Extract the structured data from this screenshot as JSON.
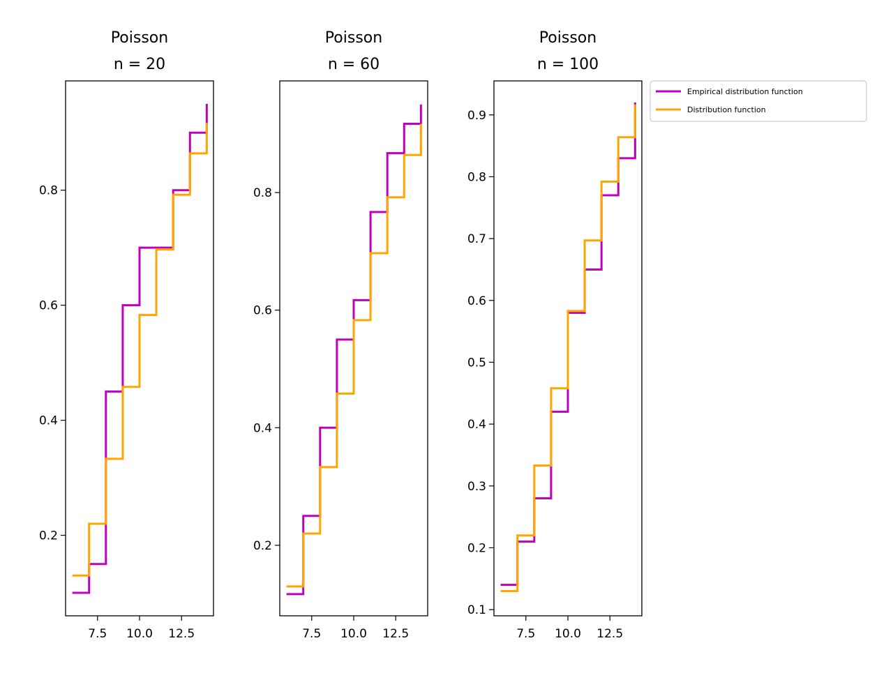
{
  "legend": {
    "entries": [
      {
        "label": "Empirical distribution function",
        "color": "#bf00bf"
      },
      {
        "label": "Distribution function",
        "color": "#ffa500"
      }
    ],
    "placement": "outside-right-top"
  },
  "chart_data": [
    {
      "type": "line",
      "step": "post",
      "title": [
        "Poisson",
        "n = 20"
      ],
      "xlabel": "",
      "ylabel": "",
      "xlim": [
        5.6,
        14.4
      ],
      "ylim": [
        0.06,
        0.99
      ],
      "xticks": [
        7.5,
        10.0,
        12.5
      ],
      "xtick_labels": [
        "7.5",
        "10.0",
        "12.5"
      ],
      "yticks": [
        0.2,
        0.4,
        0.6,
        0.8
      ],
      "ytick_labels": [
        "0.2",
        "0.4",
        "0.6",
        "0.8"
      ],
      "grid": false,
      "series": [
        {
          "name": "Empirical distribution function",
          "color": "#bf00bf",
          "x": [
            6,
            7,
            8,
            9,
            10,
            11,
            12,
            13,
            14
          ],
          "y": [
            0.1,
            0.15,
            0.45,
            0.6,
            0.7,
            0.7,
            0.8,
            0.9,
            0.95
          ]
        },
        {
          "name": "Distribution function",
          "color": "#ffa500",
          "x": [
            6,
            7,
            8,
            9,
            10,
            11,
            12,
            13,
            14
          ],
          "y": [
            0.13,
            0.22,
            0.333,
            0.458,
            0.583,
            0.697,
            0.792,
            0.864,
            0.917
          ]
        }
      ]
    },
    {
      "type": "line",
      "step": "post",
      "title": [
        "Poisson",
        "n = 60"
      ],
      "xlabel": "",
      "ylabel": "",
      "xlim": [
        5.6,
        14.4
      ],
      "ylim": [
        0.08,
        0.99
      ],
      "xticks": [
        7.5,
        10.0,
        12.5
      ],
      "xtick_labels": [
        "7.5",
        "10.0",
        "12.5"
      ],
      "yticks": [
        0.2,
        0.4,
        0.6,
        0.8
      ],
      "ytick_labels": [
        "0.2",
        "0.4",
        "0.6",
        "0.8"
      ],
      "grid": false,
      "series": [
        {
          "name": "Empirical distribution function",
          "color": "#bf00bf",
          "x": [
            6,
            7,
            8,
            9,
            10,
            11,
            12,
            13,
            14
          ],
          "y": [
            0.117,
            0.25,
            0.4,
            0.55,
            0.617,
            0.767,
            0.867,
            0.917,
            0.95
          ]
        },
        {
          "name": "Distribution function",
          "color": "#ffa500",
          "x": [
            6,
            7,
            8,
            9,
            10,
            11,
            12,
            13,
            14
          ],
          "y": [
            0.13,
            0.22,
            0.333,
            0.458,
            0.583,
            0.697,
            0.792,
            0.864,
            0.917
          ]
        }
      ]
    },
    {
      "type": "line",
      "step": "post",
      "title": [
        "Poisson",
        "n = 100"
      ],
      "xlabel": "",
      "ylabel": "",
      "xlim": [
        5.6,
        14.4
      ],
      "ylim": [
        0.09,
        0.955
      ],
      "xticks": [
        7.5,
        10.0,
        12.5
      ],
      "xtick_labels": [
        "7.5",
        "10.0",
        "12.5"
      ],
      "yticks": [
        0.1,
        0.2,
        0.3,
        0.4,
        0.5,
        0.6,
        0.7,
        0.8,
        0.9
      ],
      "ytick_labels": [
        "0.1",
        "0.2",
        "0.3",
        "0.4",
        "0.5",
        "0.6",
        "0.7",
        "0.8",
        "0.9"
      ],
      "grid": false,
      "series": [
        {
          "name": "Empirical distribution function",
          "color": "#bf00bf",
          "x": [
            6,
            7,
            8,
            9,
            10,
            11,
            12,
            13,
            14
          ],
          "y": [
            0.14,
            0.21,
            0.28,
            0.42,
            0.58,
            0.65,
            0.77,
            0.83,
            0.92
          ]
        },
        {
          "name": "Distribution function",
          "color": "#ffa500",
          "x": [
            6,
            7,
            8,
            9,
            10,
            11,
            12,
            13,
            14
          ],
          "y": [
            0.13,
            0.22,
            0.333,
            0.458,
            0.583,
            0.697,
            0.792,
            0.864,
            0.917
          ]
        }
      ]
    }
  ]
}
